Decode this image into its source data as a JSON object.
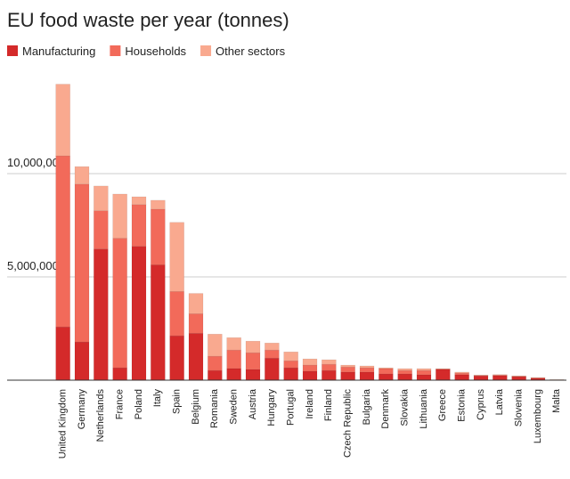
{
  "chart_data": {
    "type": "stacked_bar",
    "title": "EU food waste per year (tonnes)",
    "categories": [
      "United Kingdom",
      "Germany",
      "Netherlands",
      "France",
      "Poland",
      "Italy",
      "Spain",
      "Belgium",
      "Romania",
      "Sweden",
      "Austria",
      "Hungary",
      "Portugal",
      "Ireland",
      "Finland",
      "Czech Republic",
      "Bulgaria",
      "Denmark",
      "Slovakia",
      "Lithuania",
      "Greece",
      "Estonia",
      "Cyprus",
      "Latvia",
      "Slovenia",
      "Luxembourg",
      "Malta"
    ],
    "series": [
      {
        "name": "Manufacturing",
        "color": "#d42a2a",
        "values": [
          2580000,
          1850000,
          6350000,
          600000,
          6480000,
          5580000,
          2150000,
          2270000,
          470000,
          560000,
          520000,
          1070000,
          600000,
          430000,
          470000,
          390000,
          390000,
          300000,
          300000,
          260000,
          520000,
          260000,
          210000,
          220000,
          170000,
          90000,
          10000
        ]
      },
      {
        "name": "Households",
        "color": "#f26a5a",
        "values": [
          8280000,
          7640000,
          1850000,
          6270000,
          2020000,
          2700000,
          2140000,
          950000,
          690000,
          900000,
          810000,
          390000,
          340000,
          300000,
          300000,
          250000,
          210000,
          260000,
          170000,
          210000,
          20000,
          80000,
          20000,
          30000,
          20000,
          20000,
          10000
        ]
      },
      {
        "name": "Other sectors",
        "color": "#f9a98f",
        "values": [
          3470000,
          850000,
          1200000,
          2140000,
          380000,
          430000,
          3350000,
          980000,
          1070000,
          600000,
          560000,
          340000,
          430000,
          300000,
          220000,
          90000,
          90000,
          40000,
          90000,
          90000,
          20000,
          50000,
          20000,
          20000,
          20000,
          20000,
          10000
        ]
      }
    ],
    "ylim": [
      0,
      15000000
    ],
    "yticks": [
      {
        "value": 5000000,
        "label": "5,000,000"
      },
      {
        "value": 10000000,
        "label": "10,000,000"
      }
    ],
    "grid": true,
    "legend": "top"
  }
}
